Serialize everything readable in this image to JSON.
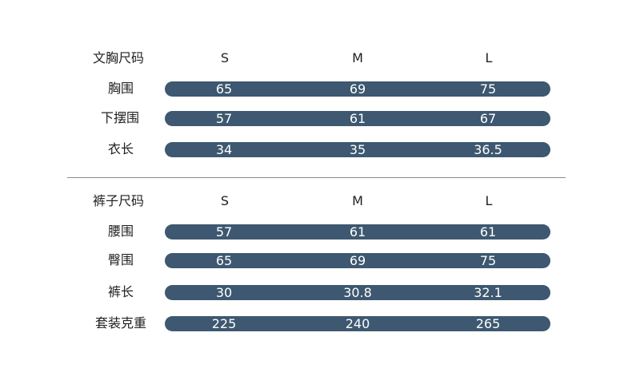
{
  "columns": [
    "S",
    "M",
    "L"
  ],
  "bra": {
    "header": "文胸尺码",
    "rows": [
      {
        "label": "胸围",
        "values": [
          "65",
          "69",
          "75"
        ]
      },
      {
        "label": "下摆围",
        "values": [
          "57",
          "61",
          "67"
        ]
      },
      {
        "label": "衣长",
        "values": [
          "34",
          "35",
          "36.5"
        ]
      }
    ]
  },
  "pants": {
    "header": "裤子尺码",
    "rows": [
      {
        "label": "腰围",
        "values": [
          "57",
          "61",
          "61"
        ]
      },
      {
        "label": "臀围",
        "values": [
          "65",
          "69",
          "75"
        ]
      },
      {
        "label": "裤长",
        "values": [
          "30",
          "30.8",
          "32.1"
        ]
      },
      {
        "label": "套装克重",
        "values": [
          "225",
          "240",
          "265"
        ]
      }
    ]
  },
  "colors": {
    "bar": "#3d5870",
    "divider": "#8a8a8a",
    "text": "#222222"
  }
}
